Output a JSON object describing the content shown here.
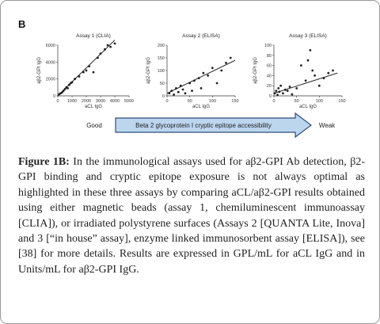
{
  "panel_label": "B",
  "chart_data": [
    {
      "type": "scatter",
      "title": "Assay 1 (CLIA)",
      "x_label": "aCL IgG",
      "y_label": "aβ2-GPI IgG",
      "xlim": [
        0,
        5000
      ],
      "xticks": [
        0,
        1000,
        2000,
        3000,
        4000,
        5000
      ],
      "ylim": [
        0,
        6000
      ],
      "yticks": [
        0,
        2000,
        4000,
        6000
      ],
      "color": "#222222",
      "x": [
        100,
        200,
        300,
        400,
        500,
        600,
        700,
        800,
        900,
        1000,
        1200,
        1500,
        1800,
        2000,
        2200,
        2500,
        2800,
        3000,
        3300,
        3500,
        3700,
        4000
      ],
      "y": [
        200,
        300,
        400,
        600,
        800,
        1000,
        900,
        1300,
        1500,
        1600,
        2000,
        2300,
        2800,
        3000,
        3500,
        2800,
        4500,
        5000,
        5500,
        6000,
        5800,
        6200
      ],
      "trend": {
        "x": [
          0,
          4000
        ],
        "y": [
          0,
          6600
        ]
      }
    },
    {
      "type": "scatter",
      "title": "Assay 2 (ELISA)",
      "x_label": "aCL IgG",
      "y_label": "aβ2-GPI IgG",
      "xlim": [
        0,
        150
      ],
      "xticks": [
        0,
        50,
        100,
        150
      ],
      "ylim": [
        0,
        200
      ],
      "yticks": [
        0,
        50,
        100,
        150,
        200
      ],
      "color": "#222222",
      "x": [
        5,
        10,
        15,
        20,
        25,
        30,
        35,
        40,
        50,
        55,
        60,
        70,
        75,
        80,
        90,
        100,
        110,
        120,
        130,
        140
      ],
      "y": [
        10,
        20,
        5,
        30,
        15,
        40,
        25,
        10,
        50,
        20,
        60,
        70,
        30,
        90,
        80,
        110,
        50,
        100,
        130,
        150
      ],
      "trend": {
        "x": [
          0,
          150
        ],
        "y": [
          10,
          140
        ]
      }
    },
    {
      "type": "scatter",
      "title": "Assay 3 (ELISA)",
      "x_label": "aCL IgG",
      "y_label": "aβ2-GPI IgG",
      "xlim": [
        0,
        150
      ],
      "xticks": [
        0,
        50,
        100,
        150
      ],
      "ylim": [
        0,
        100
      ],
      "yticks": [
        0,
        20,
        40,
        60,
        80,
        100
      ],
      "color": "#222222",
      "x": [
        2,
        5,
        8,
        10,
        12,
        15,
        20,
        25,
        30,
        35,
        40,
        50,
        60,
        70,
        75,
        80,
        85,
        90,
        100,
        110,
        120,
        130
      ],
      "y": [
        5,
        10,
        2,
        15,
        8,
        20,
        5,
        12,
        10,
        18,
        3,
        15,
        60,
        30,
        70,
        90,
        50,
        40,
        20,
        35,
        45,
        50
      ],
      "trend": {
        "x": [
          0,
          140
        ],
        "y": [
          5,
          45
        ]
      }
    }
  ],
  "arrow": {
    "left": "Good",
    "label": "Beta 2 glycoprotein I cryptic epitope accessibility",
    "right": "Weak"
  },
  "caption": {
    "label": "Figure 1B:",
    "text": "In the immunological assays used for aβ2-GPI Ab detection, β2-GPI binding and cryptic epitope exposure is not always optimal as highlighted in these three assays by comparing aCL/aβ2-GPI results obtained using either magnetic beads (assay 1, chemiluminescent immunoassay [CLIA]), or irradiated polystyrene surfaces (Assays 2 [QUANTA Lite, Inova] and 3 [“in house” assay], enzyme linked immunosorbent assay [ELISA]), see [38] for more details. Results are expressed in GPL/mL for aCL IgG and in Units/mL for aβ2-GPI IgG."
  }
}
